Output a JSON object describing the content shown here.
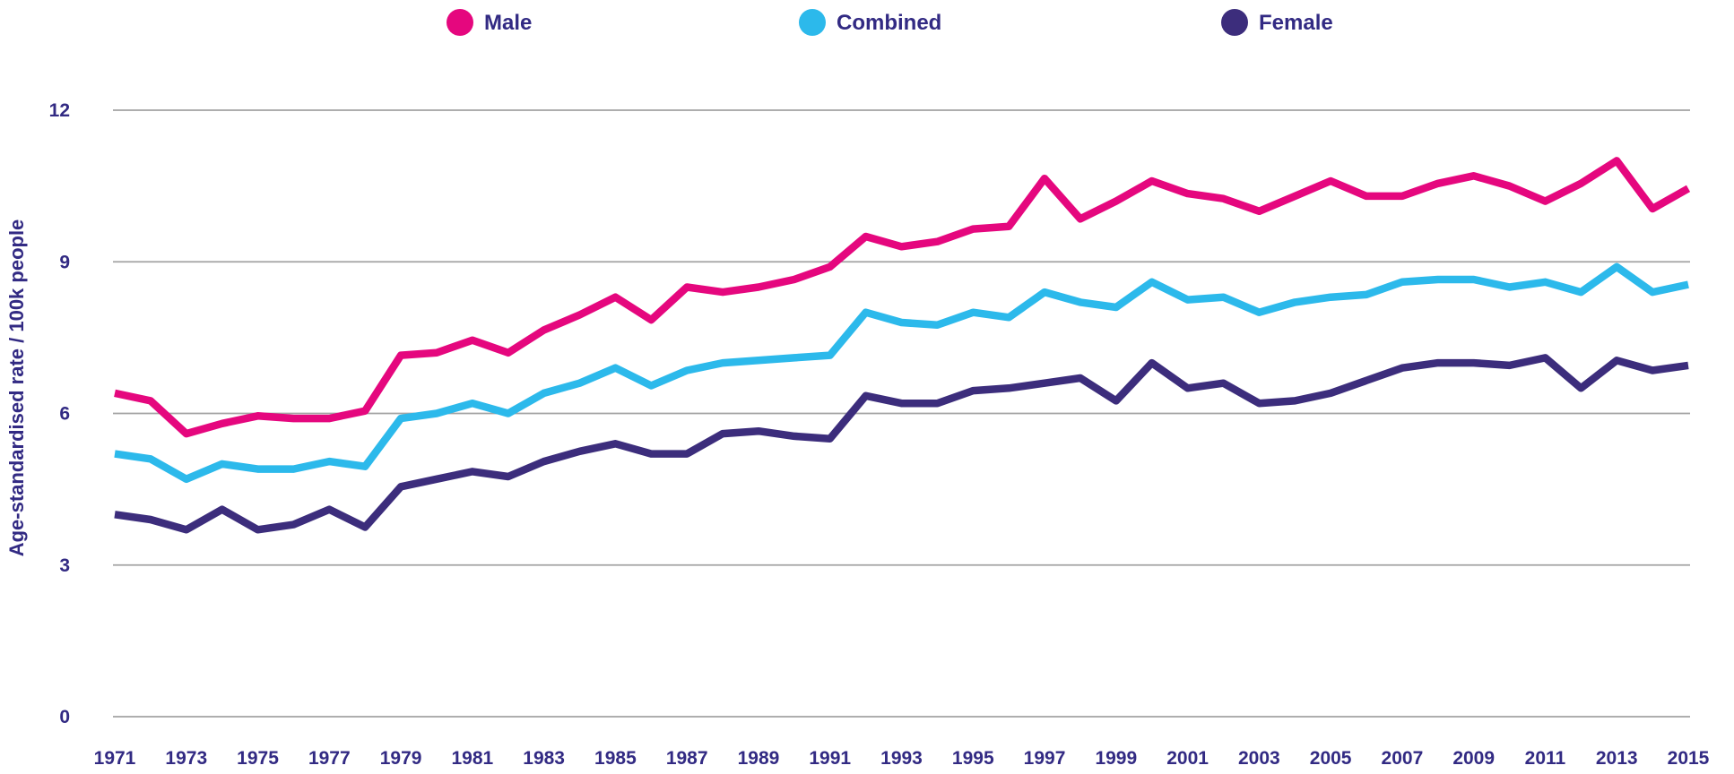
{
  "chart_data": {
    "type": "line",
    "title": "",
    "ylabel": "Age-standardised rate / 100k people",
    "xlabel": "",
    "x": [
      1971,
      1972,
      1973,
      1974,
      1975,
      1976,
      1977,
      1978,
      1979,
      1980,
      1981,
      1982,
      1983,
      1984,
      1985,
      1986,
      1987,
      1988,
      1989,
      1990,
      1991,
      1992,
      1993,
      1994,
      1995,
      1996,
      1997,
      1998,
      1999,
      2000,
      2001,
      2002,
      2003,
      2004,
      2005,
      2006,
      2007,
      2008,
      2009,
      2010,
      2011,
      2012,
      2013,
      2014,
      2015
    ],
    "xtick_labels": [
      "1971",
      "1973",
      "1975",
      "1977",
      "1979",
      "1981",
      "1983",
      "1985",
      "1987",
      "1989",
      "1991",
      "1993",
      "1995",
      "1997",
      "1999",
      "2001",
      "2003",
      "2005",
      "2007",
      "2009",
      "2011",
      "2013",
      "2015"
    ],
    "yticks": [
      0,
      3,
      6,
      9,
      12
    ],
    "ylim": [
      0,
      12
    ],
    "grid": "horizontal",
    "legend_position": "top",
    "series": [
      {
        "name": "Male",
        "color": "#e5077e",
        "values": [
          6.4,
          6.25,
          5.6,
          5.8,
          5.95,
          5.9,
          5.9,
          6.05,
          7.15,
          7.2,
          7.45,
          7.2,
          7.65,
          7.95,
          8.3,
          7.85,
          8.5,
          8.4,
          8.5,
          8.65,
          8.9,
          9.5,
          9.3,
          9.4,
          9.65,
          9.7,
          10.65,
          9.85,
          10.2,
          10.6,
          10.35,
          10.25,
          10.0,
          10.3,
          10.6,
          10.3,
          10.3,
          10.55,
          10.7,
          10.5,
          10.2,
          10.55,
          11.0,
          10.05,
          10.45
        ]
      },
      {
        "name": "Combined",
        "color": "#2cb9eb",
        "values": [
          5.2,
          5.1,
          4.7,
          5.0,
          4.9,
          4.9,
          5.05,
          4.95,
          5.9,
          6.0,
          6.2,
          6.0,
          6.4,
          6.6,
          6.9,
          6.55,
          6.85,
          7.0,
          7.05,
          7.1,
          7.15,
          8.0,
          7.8,
          7.75,
          8.0,
          7.9,
          8.4,
          8.2,
          8.1,
          8.6,
          8.25,
          8.3,
          8.0,
          8.2,
          8.3,
          8.35,
          8.6,
          8.65,
          8.65,
          8.5,
          8.6,
          8.4,
          8.9,
          8.4,
          8.55
        ]
      },
      {
        "name": "Female",
        "color": "#3c2d7c",
        "values": [
          4.0,
          3.9,
          3.7,
          4.1,
          3.7,
          3.8,
          4.1,
          3.75,
          4.55,
          4.7,
          4.85,
          4.75,
          5.05,
          5.25,
          5.4,
          5.2,
          5.2,
          5.6,
          5.65,
          5.55,
          5.5,
          6.35,
          6.2,
          6.2,
          6.45,
          6.5,
          6.6,
          6.7,
          6.25,
          7.0,
          6.5,
          6.6,
          6.2,
          6.25,
          6.4,
          6.65,
          6.9,
          7.0,
          7.0,
          6.95,
          7.1,
          6.5,
          7.05,
          6.85,
          6.95
        ]
      }
    ],
    "colors": {
      "axis_text": "#322a83",
      "gridline": "#a3a3a3",
      "background": "#ffffff"
    }
  }
}
